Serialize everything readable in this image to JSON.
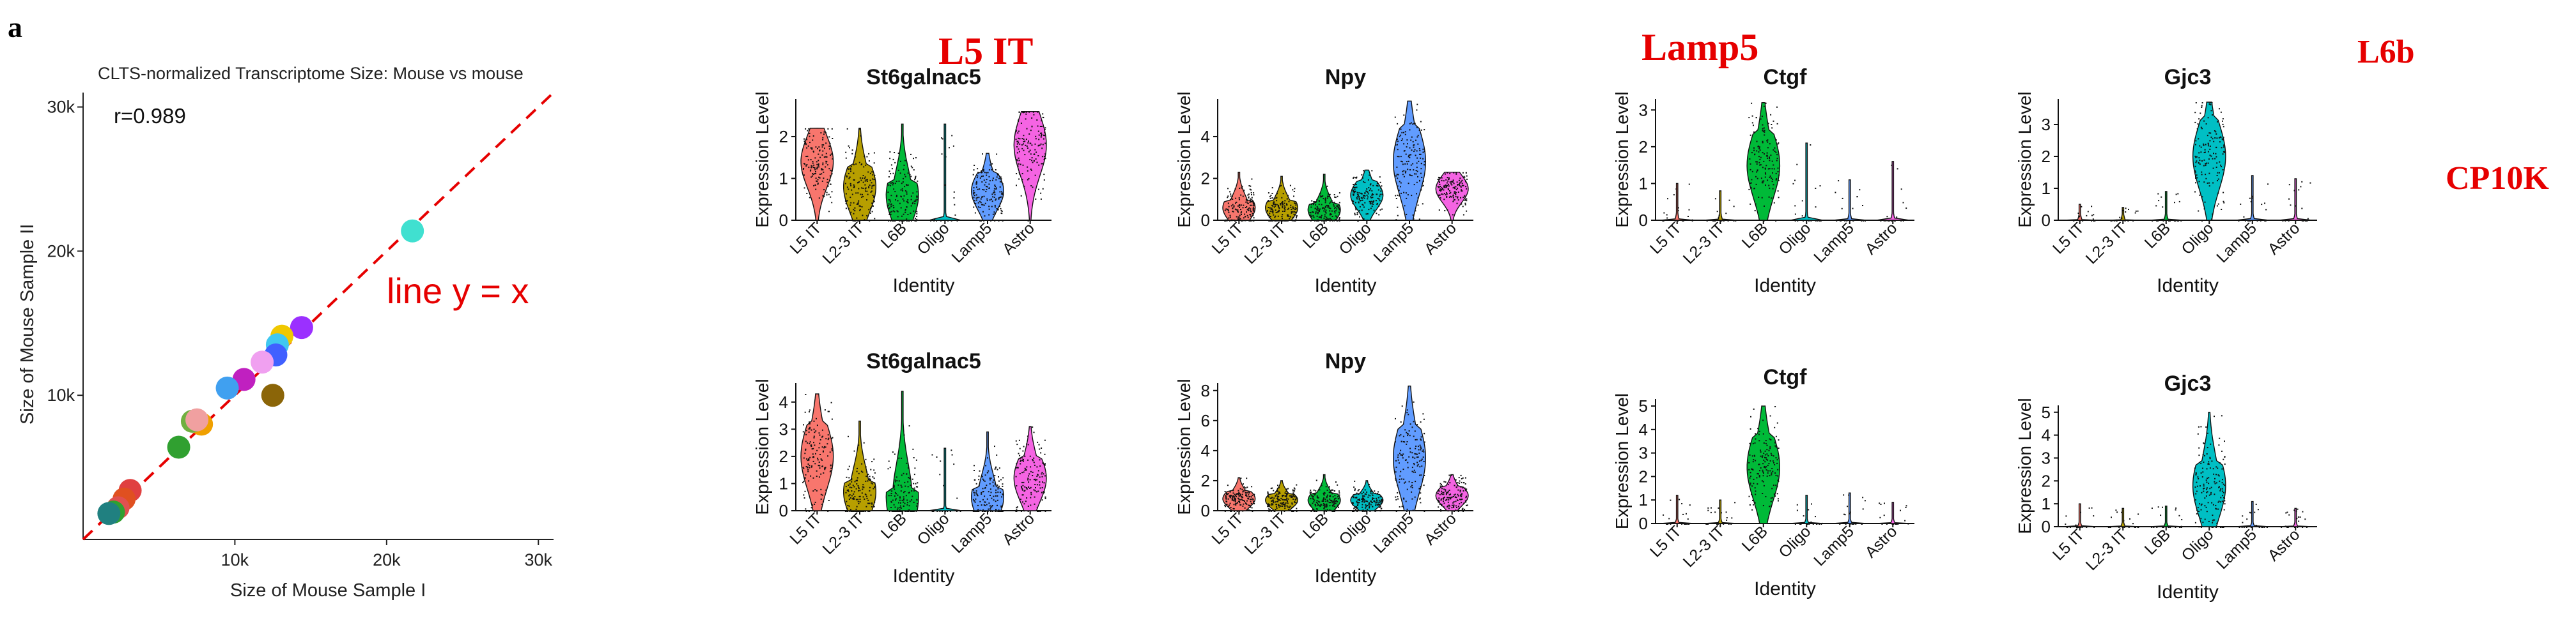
{
  "panel_letter": "a",
  "overlay_labels": {
    "l5it": "L5 IT",
    "lamp5": "Lamp5",
    "l6b": "L6b",
    "cp10k": "CP10K"
  },
  "scatter": {
    "title": "CLTS-normalized Transcriptome Size: Mouse vs mouse",
    "xlabel": "Size of Mouse Sample I",
    "ylabel": "Size of Mouse Sample II",
    "r_label": "r=0.989",
    "line_label": "line y = x"
  },
  "violin": {
    "xlabel": "Identity",
    "ylabel": "Expression Level",
    "categories": [
      "L5 IT",
      "L2-3 IT",
      "L6B",
      "Oligo",
      "Lamp5",
      "Astro"
    ]
  },
  "colors": {
    "accent_red": "#e60000",
    "L5 IT": "#f8766d",
    "L2-3 IT": "#b79f00",
    "L6B": "#00ba38",
    "Oligo": "#00bfc4",
    "Lamp5": "#619cff",
    "Astro": "#f564e3"
  },
  "chart_data": [
    {
      "type": "scatter",
      "title": "CLTS-normalized Transcriptome Size: Mouse vs mouse",
      "xlabel": "Size of Mouse Sample I",
      "ylabel": "Size of Mouse Sample II",
      "xlim": [
        0,
        31000
      ],
      "ylim": [
        0,
        31000
      ],
      "xticks": [
        10000,
        20000,
        30000
      ],
      "xtick_labels": [
        "10k",
        "20k",
        "30k"
      ],
      "yticks": [
        10000,
        20000,
        30000
      ],
      "ytick_labels": [
        "10k",
        "20k",
        "30k"
      ],
      "annotation": "r=0.989",
      "reference_line": {
        "label": "line y = x",
        "style": "dashed",
        "color": "#e60000"
      },
      "points": [
        {
          "x": 21700,
          "y": 21400,
          "color": "#40e0d0"
        },
        {
          "x": 14400,
          "y": 14700,
          "color": "#9b30ff"
        },
        {
          "x": 13100,
          "y": 14100,
          "color": "#f0c800"
        },
        {
          "x": 12800,
          "y": 13500,
          "color": "#40c8f0"
        },
        {
          "x": 12700,
          "y": 12800,
          "color": "#4060ff"
        },
        {
          "x": 11800,
          "y": 12300,
          "color": "#f0a0f0"
        },
        {
          "x": 10600,
          "y": 11100,
          "color": "#c020c0"
        },
        {
          "x": 9500,
          "y": 10500,
          "color": "#40a0f0"
        },
        {
          "x": 12500,
          "y": 10000,
          "color": "#8b6508"
        },
        {
          "x": 7800,
          "y": 8000,
          "color": "#f0a000"
        },
        {
          "x": 7200,
          "y": 8200,
          "color": "#70b040"
        },
        {
          "x": 7500,
          "y": 8300,
          "color": "#f0a0a0"
        },
        {
          "x": 6300,
          "y": 6400,
          "color": "#30a030"
        },
        {
          "x": 3100,
          "y": 3400,
          "color": "#e04040"
        },
        {
          "x": 2700,
          "y": 2800,
          "color": "#e05020"
        },
        {
          "x": 2300,
          "y": 2200,
          "color": "#e05050"
        },
        {
          "x": 2000,
          "y": 1900,
          "color": "#30a030"
        },
        {
          "x": 1700,
          "y": 1800,
          "color": "#208080"
        }
      ]
    },
    {
      "type": "violin",
      "title": "St6galnac5",
      "ylabel": "Expression Level",
      "xlabel": "Identity",
      "categories": [
        "L5 IT",
        "L2-3 IT",
        "L6B",
        "Oligo",
        "Lamp5",
        "Astro"
      ],
      "ylim": [
        0,
        2.9
      ],
      "yticks": [
        0,
        1,
        2
      ],
      "max_values": [
        2.2,
        2.2,
        2.3,
        2.3,
        1.6,
        2.6
      ],
      "median_values": [
        1.4,
        0.8,
        0.6,
        0.0,
        0.7,
        1.8
      ]
    },
    {
      "type": "violin",
      "title": "Npy",
      "ylabel": "Expression Level",
      "xlabel": "Identity",
      "categories": [
        "L5 IT",
        "L2-3 IT",
        "L6B",
        "Oligo",
        "Lamp5",
        "Astro"
      ],
      "ylim": [
        0,
        5.8
      ],
      "yticks": [
        0,
        2,
        4
      ],
      "max_values": [
        2.3,
        2.1,
        2.2,
        2.4,
        5.7,
        2.3
      ],
      "median_values": [
        0.6,
        0.6,
        0.5,
        1.2,
        2.8,
        1.5
      ]
    },
    {
      "type": "violin",
      "title": "Ctgf",
      "ylabel": "Expression Level",
      "xlabel": "Identity",
      "categories": [
        "L5 IT",
        "L2-3 IT",
        "L6B",
        "Oligo",
        "Lamp5",
        "Astro"
      ],
      "ylim": [
        0,
        3.3
      ],
      "yticks": [
        0,
        1,
        2,
        3
      ],
      "max_values": [
        1.0,
        0.8,
        3.2,
        2.1,
        1.1,
        1.6
      ],
      "median_values": [
        0.0,
        0.0,
        1.5,
        0.0,
        0.0,
        0.0
      ]
    },
    {
      "type": "violin",
      "title": "Gjc3",
      "ylabel": "Expression Level",
      "xlabel": "Identity",
      "categories": [
        "L5 IT",
        "L2-3 IT",
        "L6B",
        "Oligo",
        "Lamp5",
        "Astro"
      ],
      "ylim": [
        0,
        3.8
      ],
      "yticks": [
        0,
        1,
        2,
        3
      ],
      "max_values": [
        0.5,
        0.4,
        0.9,
        3.7,
        1.4,
        1.3
      ],
      "median_values": [
        0.0,
        0.0,
        0.0,
        2.0,
        0.0,
        0.0
      ]
    },
    {
      "type": "violin",
      "title": "St6galnac5",
      "ylabel": "Expression Level",
      "xlabel": "Identity",
      "categories": [
        "L5 IT",
        "L2-3 IT",
        "L6B",
        "Oligo",
        "Lamp5",
        "Astro"
      ],
      "ylim": [
        0,
        4.7
      ],
      "yticks": [
        0,
        1,
        2,
        3,
        4
      ],
      "max_values": [
        4.3,
        3.3,
        4.4,
        2.3,
        2.9,
        3.1
      ],
      "median_values": [
        2.0,
        0.7,
        0.5,
        0.0,
        0.5,
        1.2
      ]
    },
    {
      "type": "violin",
      "title": "Npy",
      "ylabel": "Expression Level",
      "xlabel": "Identity",
      "categories": [
        "L5 IT",
        "L2-3 IT",
        "L6B",
        "Oligo",
        "Lamp5",
        "Astro"
      ],
      "ylim": [
        0,
        8.5
      ],
      "yticks": [
        0,
        2,
        4,
        6,
        8
      ],
      "max_values": [
        2.2,
        2.0,
        2.4,
        2.0,
        8.3,
        2.4
      ],
      "median_values": [
        0.8,
        0.7,
        0.7,
        0.7,
        3.5,
        1.0
      ]
    },
    {
      "type": "violin",
      "title": "Ctgf",
      "ylabel": "Expression Level",
      "xlabel": "Identity",
      "categories": [
        "L5 IT",
        "L2-3 IT",
        "L6B",
        "Oligo",
        "Lamp5",
        "Astro"
      ],
      "ylim": [
        0,
        5.3
      ],
      "yticks": [
        0,
        1,
        2,
        3,
        4,
        5
      ],
      "max_values": [
        1.2,
        1.0,
        5.0,
        1.2,
        1.3,
        0.9
      ],
      "median_values": [
        0.0,
        0.0,
        2.4,
        0.0,
        0.0,
        0.0
      ]
    },
    {
      "type": "violin",
      "title": "Gjc3",
      "ylabel": "Expression Level",
      "xlabel": "Identity",
      "categories": [
        "L5 IT",
        "L2-3 IT",
        "L6B",
        "Oligo",
        "Lamp5",
        "Astro"
      ],
      "ylim": [
        0,
        5.3
      ],
      "yticks": [
        0,
        1,
        2,
        3,
        4,
        5
      ],
      "max_values": [
        1.0,
        0.8,
        0.9,
        5.0,
        1.1,
        0.8
      ],
      "median_values": [
        0.0,
        0.0,
        0.0,
        1.8,
        0.0,
        0.0
      ]
    }
  ]
}
